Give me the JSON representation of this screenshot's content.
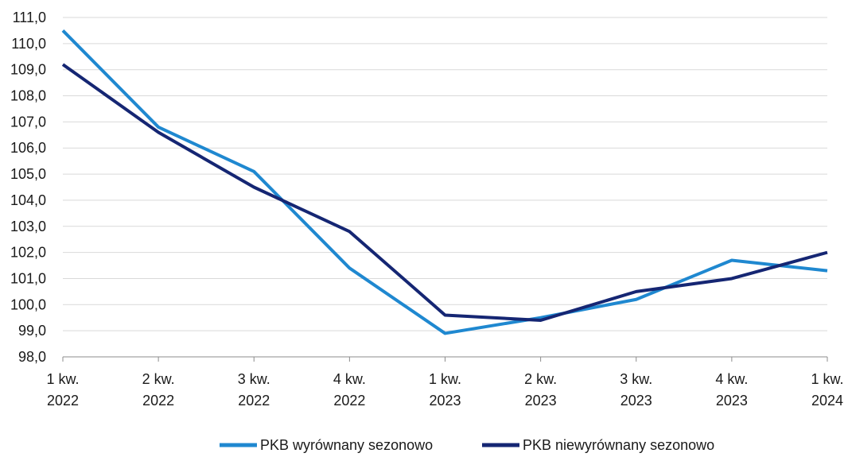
{
  "chart_data": {
    "type": "line",
    "title": "",
    "xlabel": "",
    "ylabel": "",
    "categories": [
      [
        "1 kw.",
        "2022"
      ],
      [
        "2 kw.",
        "2022"
      ],
      [
        "3 kw.",
        "2022"
      ],
      [
        "4 kw.",
        "2022"
      ],
      [
        "1 kw.",
        "2023"
      ],
      [
        "2 kw.",
        "2023"
      ],
      [
        "3 kw.",
        "2023"
      ],
      [
        "4 kw.",
        "2023"
      ],
      [
        "1 kw.",
        "2024"
      ]
    ],
    "ylim": [
      98.0,
      111.0
    ],
    "ytick_step": 1.0,
    "ytick_labels": [
      "98,0",
      "99,0",
      "100,0",
      "101,0",
      "102,0",
      "103,0",
      "104,0",
      "105,0",
      "106,0",
      "107,0",
      "108,0",
      "109,0",
      "110,0",
      "111,0"
    ],
    "grid": true,
    "legend_position": "bottom",
    "series": [
      {
        "name": "PKB wyrównany sezonowo",
        "color": "#1f88d0",
        "values": [
          110.5,
          106.8,
          105.1,
          101.4,
          98.9,
          99.5,
          100.2,
          101.7,
          101.3
        ]
      },
      {
        "name": "PKB niewyrównany sezonowo",
        "color": "#152673",
        "values": [
          109.2,
          106.6,
          104.5,
          102.8,
          99.6,
          99.4,
          100.5,
          101.0,
          102.0
        ]
      }
    ]
  }
}
